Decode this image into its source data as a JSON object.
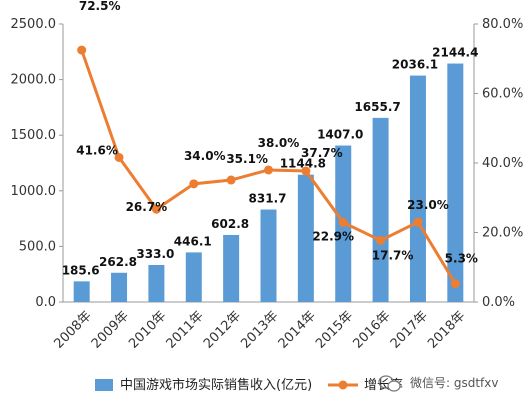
{
  "chart_data": {
    "type": "bar+line",
    "categories": [
      "2008年",
      "2009年",
      "2010年",
      "2011年",
      "2012年",
      "2013年",
      "2014年",
      "2015年",
      "2016年",
      "2017年",
      "2018年"
    ],
    "series": [
      {
        "name": "中国游戏市场实际销售收入(亿元)",
        "type": "bar",
        "axis": "left",
        "values": [
          185.6,
          262.8,
          333.0,
          446.1,
          602.8,
          831.7,
          1144.8,
          1407.0,
          1655.7,
          2036.1,
          2144.4
        ],
        "labels": [
          "185.6",
          "262.8",
          "333.0",
          "446.1",
          "602.8",
          "831.7",
          "1144.8",
          "1407.0",
          "1655.7",
          "2036.1",
          "2144.4"
        ]
      },
      {
        "name": "增长率",
        "type": "line",
        "axis": "right",
        "values": [
          72.5,
          41.6,
          26.7,
          34.0,
          35.1,
          38.0,
          37.7,
          22.9,
          17.7,
          23.0,
          5.3
        ],
        "labels": [
          "72.5%",
          "41.6%",
          "26.7%",
          "34.0%",
          "35.1%",
          "38.0%",
          "37.7%",
          "22.9%",
          "17.7%",
          "23.0%",
          "5.3%"
        ]
      }
    ],
    "y_left": {
      "ylim": [
        0,
        2500
      ],
      "ticks": [
        "0.0",
        "500.0",
        "1000.0",
        "1500.0",
        "2000.0",
        "2500.0"
      ]
    },
    "y_right": {
      "ylim": [
        0,
        80
      ],
      "ticks": [
        "0.0%",
        "20.0%",
        "40.0%",
        "60.0%",
        "80.0%"
      ]
    },
    "grid": false,
    "legend_position": "bottom",
    "colors": {
      "bar": "#5b9bd5",
      "line": "#ed7d31"
    }
  },
  "watermark": {
    "text": "微信号: gsdtfxv",
    "icon": "wechat-icon"
  }
}
